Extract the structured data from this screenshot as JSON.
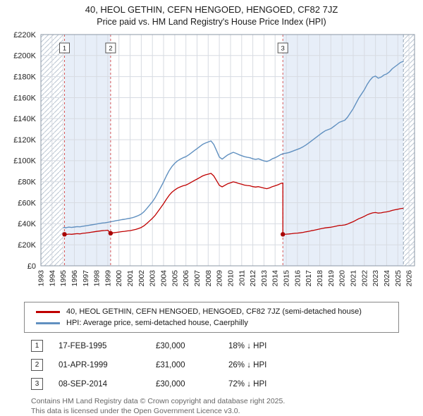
{
  "title": "40, HEOL GETHIN, CEFN HENGOED, HENGOED, CF82 7JZ",
  "subtitle": "Price paid vs. HM Land Registry's House Price Index (HPI)",
  "chart_data": {
    "type": "line",
    "x_start": 1993,
    "x_end": 2026.5,
    "ylim": [
      0,
      220
    ],
    "y_tick_step": 20,
    "y_ticks": [
      "£0",
      "£20K",
      "£40K",
      "£60K",
      "£80K",
      "£100K",
      "£120K",
      "£140K",
      "£160K",
      "£180K",
      "£200K",
      "£220K"
    ],
    "x_ticks": [
      1993,
      1994,
      1995,
      1996,
      1997,
      1998,
      1999,
      2000,
      2001,
      2002,
      2003,
      2004,
      2005,
      2006,
      2007,
      2008,
      2009,
      2010,
      2011,
      2012,
      2013,
      2014,
      2015,
      2016,
      2017,
      2018,
      2019,
      2020,
      2021,
      2022,
      2023,
      2024,
      2025,
      2026
    ],
    "grid": true,
    "band_color": "#e7eef8",
    "data_end": 2025.5,
    "bands": [
      [
        1995.12,
        1999.25
      ],
      [
        2014.69,
        2025.5
      ]
    ],
    "no_data": [
      [
        1993,
        1995.0
      ],
      [
        2025.5,
        2026.5
      ]
    ],
    "sales": [
      {
        "n": "1",
        "x": 1995.12,
        "y": 30
      },
      {
        "n": "2",
        "x": 1999.25,
        "y": 31
      },
      {
        "n": "3",
        "x": 2014.69,
        "y": 30
      }
    ],
    "series": [
      {
        "name": "40, HEOL GETHIN, CEFN HENGOED, HENGOED, CF82 7JZ (semi-detached house)",
        "color": "#c00000",
        "width": 1.3,
        "points": [
          [
            1995.12,
            30.0
          ],
          [
            1995.25,
            29.8
          ],
          [
            1995.5,
            30.2
          ],
          [
            1995.75,
            30.0
          ],
          [
            1996.0,
            30.3
          ],
          [
            1996.25,
            30.6
          ],
          [
            1996.5,
            30.4
          ],
          [
            1996.75,
            30.9
          ],
          [
            1997.0,
            31.2
          ],
          [
            1997.25,
            31.5
          ],
          [
            1997.5,
            31.9
          ],
          [
            1997.75,
            32.3
          ],
          [
            1998.0,
            32.7
          ],
          [
            1998.25,
            33.1
          ],
          [
            1998.5,
            33.4
          ],
          [
            1998.75,
            33.6
          ],
          [
            1999.0,
            33.9
          ],
          [
            1999.25,
            31.0
          ],
          [
            1999.5,
            31.4
          ],
          [
            1999.75,
            31.8
          ],
          [
            2000.0,
            32.1
          ],
          [
            2000.25,
            32.5
          ],
          [
            2000.5,
            32.8
          ],
          [
            2000.75,
            33.2
          ],
          [
            2001.0,
            33.5
          ],
          [
            2001.25,
            34.0
          ],
          [
            2001.5,
            34.6
          ],
          [
            2001.75,
            35.5
          ],
          [
            2002.0,
            36.5
          ],
          [
            2002.25,
            38.1
          ],
          [
            2002.5,
            40.3
          ],
          [
            2002.75,
            42.8
          ],
          [
            2003.0,
            45.2
          ],
          [
            2003.25,
            48.1
          ],
          [
            2003.5,
            51.7
          ],
          [
            2003.75,
            55.4
          ],
          [
            2004.0,
            59.1
          ],
          [
            2004.25,
            63.3
          ],
          [
            2004.5,
            67.0
          ],
          [
            2004.75,
            70.0
          ],
          [
            2005.0,
            72.2
          ],
          [
            2005.25,
            73.9
          ],
          [
            2005.5,
            75.1
          ],
          [
            2005.75,
            76.1
          ],
          [
            2006.0,
            76.8
          ],
          [
            2006.25,
            78.1
          ],
          [
            2006.5,
            79.6
          ],
          [
            2006.75,
            81.1
          ],
          [
            2007.0,
            82.5
          ],
          [
            2007.25,
            84.0
          ],
          [
            2007.5,
            85.5
          ],
          [
            2007.75,
            86.5
          ],
          [
            2008.0,
            87.2
          ],
          [
            2008.25,
            87.9
          ],
          [
            2008.5,
            85.5
          ],
          [
            2008.75,
            81.0
          ],
          [
            2009.0,
            76.6
          ],
          [
            2009.25,
            75.1
          ],
          [
            2009.5,
            76.6
          ],
          [
            2009.75,
            78.1
          ],
          [
            2010.0,
            79.0
          ],
          [
            2010.25,
            79.9
          ],
          [
            2010.5,
            79.2
          ],
          [
            2010.75,
            78.3
          ],
          [
            2011.0,
            77.6
          ],
          [
            2011.25,
            76.8
          ],
          [
            2011.5,
            76.4
          ],
          [
            2011.75,
            76.1
          ],
          [
            2012.0,
            75.3
          ],
          [
            2012.25,
            74.9
          ],
          [
            2012.5,
            75.3
          ],
          [
            2012.75,
            74.6
          ],
          [
            2013.0,
            73.9
          ],
          [
            2013.25,
            73.4
          ],
          [
            2013.5,
            74.1
          ],
          [
            2013.75,
            75.3
          ],
          [
            2014.0,
            76.1
          ],
          [
            2014.25,
            77.1
          ],
          [
            2014.5,
            78.3
          ],
          [
            2014.69,
            78.8
          ],
          [
            2014.69,
            30.0
          ],
          [
            2015.0,
            30.1
          ],
          [
            2015.25,
            30.3
          ],
          [
            2015.5,
            30.6
          ],
          [
            2015.75,
            30.9
          ],
          [
            2016.0,
            31.1
          ],
          [
            2016.25,
            31.4
          ],
          [
            2016.5,
            31.8
          ],
          [
            2016.75,
            32.3
          ],
          [
            2017.0,
            32.8
          ],
          [
            2017.25,
            33.4
          ],
          [
            2017.5,
            33.9
          ],
          [
            2017.75,
            34.5
          ],
          [
            2018.0,
            35.1
          ],
          [
            2018.25,
            35.6
          ],
          [
            2018.5,
            36.1
          ],
          [
            2018.75,
            36.4
          ],
          [
            2019.0,
            36.7
          ],
          [
            2019.25,
            37.2
          ],
          [
            2019.5,
            37.8
          ],
          [
            2019.75,
            38.4
          ],
          [
            2020.0,
            38.6
          ],
          [
            2020.25,
            38.9
          ],
          [
            2020.5,
            39.8
          ],
          [
            2020.75,
            40.9
          ],
          [
            2021.0,
            42.0
          ],
          [
            2021.25,
            43.4
          ],
          [
            2021.5,
            44.8
          ],
          [
            2021.75,
            45.9
          ],
          [
            2022.0,
            47.1
          ],
          [
            2022.25,
            48.5
          ],
          [
            2022.5,
            49.6
          ],
          [
            2022.75,
            50.4
          ],
          [
            2023.0,
            50.7
          ],
          [
            2023.25,
            50.2
          ],
          [
            2023.5,
            50.4
          ],
          [
            2023.75,
            51.0
          ],
          [
            2024.0,
            51.3
          ],
          [
            2024.25,
            51.9
          ],
          [
            2024.5,
            52.7
          ],
          [
            2024.75,
            53.3
          ],
          [
            2025.0,
            53.8
          ],
          [
            2025.25,
            54.4
          ],
          [
            2025.5,
            54.7
          ]
        ]
      },
      {
        "name": "HPI: Average price, semi-detached house, Caerphilly",
        "color": "#6090c0",
        "width": 1.4,
        "points": [
          [
            1995.0,
            36.5
          ],
          [
            1995.25,
            36.2
          ],
          [
            1995.5,
            36.8
          ],
          [
            1995.75,
            36.5
          ],
          [
            1996.0,
            36.9
          ],
          [
            1996.25,
            37.3
          ],
          [
            1996.5,
            37.1
          ],
          [
            1996.75,
            37.6
          ],
          [
            1997.0,
            38.0
          ],
          [
            1997.25,
            38.4
          ],
          [
            1997.5,
            38.9
          ],
          [
            1997.75,
            39.3
          ],
          [
            1998.0,
            39.8
          ],
          [
            1998.25,
            40.3
          ],
          [
            1998.5,
            40.7
          ],
          [
            1998.75,
            41.0
          ],
          [
            1999.0,
            41.4
          ],
          [
            1999.25,
            41.9
          ],
          [
            1999.5,
            42.4
          ],
          [
            1999.75,
            43.0
          ],
          [
            2000.0,
            43.4
          ],
          [
            2000.25,
            43.9
          ],
          [
            2000.5,
            44.3
          ],
          [
            2000.75,
            44.8
          ],
          [
            2001.0,
            45.3
          ],
          [
            2001.25,
            45.9
          ],
          [
            2001.5,
            46.8
          ],
          [
            2001.75,
            47.9
          ],
          [
            2002.0,
            49.3
          ],
          [
            2002.25,
            51.5
          ],
          [
            2002.5,
            54.5
          ],
          [
            2002.75,
            57.8
          ],
          [
            2003.0,
            61.0
          ],
          [
            2003.25,
            65.0
          ],
          [
            2003.5,
            69.8
          ],
          [
            2003.75,
            74.8
          ],
          [
            2004.0,
            79.8
          ],
          [
            2004.25,
            85.5
          ],
          [
            2004.5,
            90.5
          ],
          [
            2004.75,
            94.5
          ],
          [
            2005.0,
            97.5
          ],
          [
            2005.25,
            99.8
          ],
          [
            2005.5,
            101.5
          ],
          [
            2005.75,
            102.8
          ],
          [
            2006.0,
            103.8
          ],
          [
            2006.25,
            105.5
          ],
          [
            2006.5,
            107.5
          ],
          [
            2006.75,
            109.5
          ],
          [
            2007.0,
            111.5
          ],
          [
            2007.25,
            113.5
          ],
          [
            2007.5,
            115.5
          ],
          [
            2007.75,
            116.8
          ],
          [
            2008.0,
            117.8
          ],
          [
            2008.25,
            118.8
          ],
          [
            2008.5,
            115.5
          ],
          [
            2008.75,
            109.5
          ],
          [
            2009.0,
            103.5
          ],
          [
            2009.25,
            101.5
          ],
          [
            2009.5,
            103.5
          ],
          [
            2009.75,
            105.5
          ],
          [
            2010.0,
            106.8
          ],
          [
            2010.25,
            108.0
          ],
          [
            2010.5,
            107.0
          ],
          [
            2010.75,
            105.8
          ],
          [
            2011.0,
            104.8
          ],
          [
            2011.25,
            103.8
          ],
          [
            2011.5,
            103.2
          ],
          [
            2011.75,
            102.8
          ],
          [
            2012.0,
            101.8
          ],
          [
            2012.25,
            101.2
          ],
          [
            2012.5,
            101.8
          ],
          [
            2012.75,
            100.8
          ],
          [
            2013.0,
            99.8
          ],
          [
            2013.25,
            99.2
          ],
          [
            2013.5,
            100.2
          ],
          [
            2013.75,
            101.8
          ],
          [
            2014.0,
            102.8
          ],
          [
            2014.25,
            104.2
          ],
          [
            2014.5,
            105.8
          ],
          [
            2014.75,
            106.8
          ],
          [
            2015.0,
            107.2
          ],
          [
            2015.25,
            107.8
          ],
          [
            2015.5,
            108.8
          ],
          [
            2015.75,
            109.8
          ],
          [
            2016.0,
            110.8
          ],
          [
            2016.25,
            111.8
          ],
          [
            2016.5,
            113.2
          ],
          [
            2016.75,
            114.8
          ],
          [
            2017.0,
            116.8
          ],
          [
            2017.25,
            118.8
          ],
          [
            2017.5,
            120.8
          ],
          [
            2017.75,
            122.8
          ],
          [
            2018.0,
            124.8
          ],
          [
            2018.25,
            126.8
          ],
          [
            2018.5,
            128.5
          ],
          [
            2018.75,
            129.5
          ],
          [
            2019.0,
            130.5
          ],
          [
            2019.25,
            132.5
          ],
          [
            2019.5,
            134.5
          ],
          [
            2019.75,
            136.5
          ],
          [
            2020.0,
            137.5
          ],
          [
            2020.25,
            138.5
          ],
          [
            2020.5,
            141.5
          ],
          [
            2020.75,
            145.5
          ],
          [
            2021.0,
            149.5
          ],
          [
            2021.25,
            154.5
          ],
          [
            2021.5,
            159.5
          ],
          [
            2021.75,
            163.5
          ],
          [
            2022.0,
            167.5
          ],
          [
            2022.25,
            172.5
          ],
          [
            2022.5,
            176.5
          ],
          [
            2022.75,
            179.5
          ],
          [
            2023.0,
            180.5
          ],
          [
            2023.25,
            178.5
          ],
          [
            2023.5,
            179.5
          ],
          [
            2023.75,
            181.5
          ],
          [
            2024.0,
            182.5
          ],
          [
            2024.25,
            184.5
          ],
          [
            2024.5,
            187.5
          ],
          [
            2024.75,
            189.5
          ],
          [
            2025.0,
            191.5
          ],
          [
            2025.25,
            193.5
          ],
          [
            2025.5,
            194.5
          ]
        ]
      }
    ]
  },
  "legend": [
    {
      "label": "40, HEOL GETHIN, CEFN HENGOED, HENGOED, CF82 7JZ (semi-detached house)",
      "color": "#c00000"
    },
    {
      "label": "HPI: Average price, semi-detached house, Caerphilly",
      "color": "#6090c0"
    }
  ],
  "transactions": [
    {
      "num": "1",
      "date": "17-FEB-1995",
      "price": "£30,000",
      "hpi": "18% ↓ HPI"
    },
    {
      "num": "2",
      "date": "01-APR-1999",
      "price": "£31,000",
      "hpi": "26% ↓ HPI"
    },
    {
      "num": "3",
      "date": "08-SEP-2014",
      "price": "£30,000",
      "hpi": "72% ↓ HPI"
    }
  ],
  "footer": {
    "line1": "Contains HM Land Registry data © Crown copyright and database right 2025.",
    "line2": "This data is licensed under the Open Government Licence v3.0."
  }
}
